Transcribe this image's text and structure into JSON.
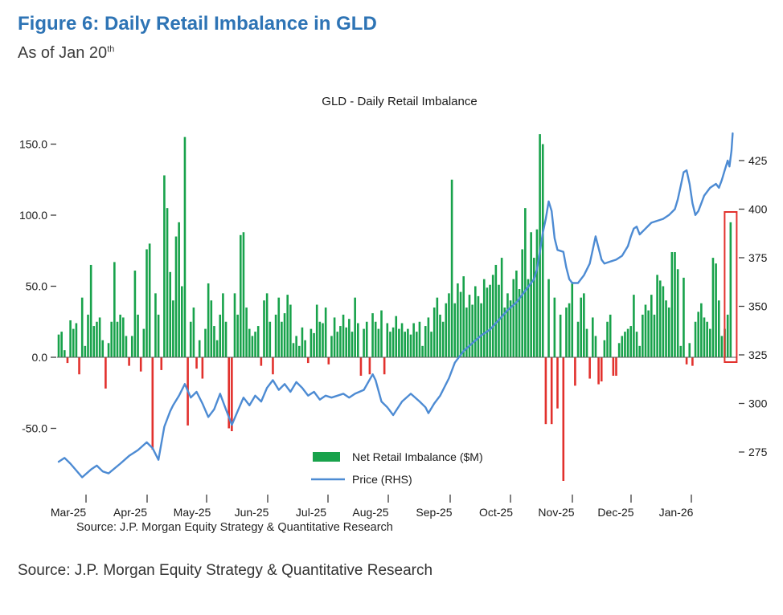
{
  "document": {
    "title": "Figure 6: Daily Retail Imbalance in GLD",
    "as_of_text": "As of Jan 20",
    "as_of_superscript": "th",
    "source": "Source: J.P. Morgan Equity Strategy & Quantitative Research"
  },
  "chart_data": {
    "type": "bar+line",
    "title": "GLD - Daily Retail Imbalance",
    "source": "Source: J.P. Morgan Equity Strategy & Quantitative Research",
    "legend_position": "bottom-center-inside",
    "grid": false,
    "x_axis": {
      "labels": [
        "Mar-25",
        "Apr-25",
        "May-25",
        "Jun-25",
        "Jul-25",
        "Aug-25",
        "Sep-25",
        "Oct-25",
        "Nov-25",
        "Dec-25",
        "Jan-26"
      ]
    },
    "y_axis_left": {
      "name": "Net Retail Imbalance ($M)",
      "tick_labels": [
        "150.0",
        "100.0",
        "50.0",
        "0.0",
        "-50.0"
      ],
      "tick_values": [
        150,
        100,
        50,
        0,
        -50
      ],
      "range": [
        -105,
        165
      ]
    },
    "y_axis_right": {
      "name": "Price (RHS)",
      "tick_labels": [
        "425",
        "400",
        "375",
        "350",
        "325",
        "300",
        "275"
      ],
      "tick_values": [
        425,
        400,
        375,
        350,
        325,
        300,
        275
      ],
      "range": [
        262,
        442
      ]
    },
    "legend": [
      {
        "label": "Net Retail Imbalance ($M)",
        "swatch": "bar",
        "color": "#18a24b"
      },
      {
        "label": "Price (RHS)",
        "swatch": "line",
        "color": "#4d8bd3"
      }
    ],
    "series": [
      {
        "name": "Net Retail Imbalance ($M)",
        "type": "bar",
        "axis": "left",
        "color_positive": "#18a24b",
        "color_negative": "#e2312d",
        "values": [
          16,
          18,
          5,
          -4,
          26,
          20,
          24,
          -12,
          42,
          8,
          30,
          65,
          22,
          25,
          28,
          12,
          -22,
          10,
          25,
          67,
          25,
          30,
          28,
          15,
          -6,
          15,
          61,
          30,
          -10,
          20,
          76,
          80,
          -65,
          45,
          30,
          -9,
          128,
          105,
          60,
          40,
          85,
          95,
          50,
          155,
          -48,
          25,
          35,
          -8,
          12,
          -15,
          20,
          52,
          40,
          22,
          12,
          30,
          45,
          25,
          -50,
          -52,
          45,
          30,
          86,
          88,
          35,
          20,
          15,
          18,
          22,
          -6,
          40,
          45,
          25,
          -12,
          30,
          42,
          25,
          31,
          44,
          37,
          10,
          15,
          8,
          21,
          12,
          -4,
          20,
          17,
          37,
          25,
          24,
          35,
          -5,
          15,
          28,
          18,
          22,
          30,
          21,
          27,
          18,
          42,
          24,
          -13,
          20,
          25,
          -12,
          31,
          25,
          20,
          33,
          -12,
          24,
          18,
          21,
          29,
          20,
          24,
          18,
          20,
          16,
          24,
          18,
          25,
          8,
          22,
          28,
          18,
          35,
          42,
          30,
          25,
          38,
          45,
          125,
          38,
          52,
          46,
          57,
          35,
          44,
          37,
          50,
          43,
          38,
          55,
          49,
          51,
          58,
          65,
          51,
          70,
          35,
          45,
          40,
          55,
          61,
          48,
          76,
          105,
          55,
          88,
          70,
          90,
          157,
          150,
          -47,
          55,
          -47,
          42,
          -36,
          30,
          -87,
          35,
          38,
          53,
          -20,
          25,
          42,
          45,
          20,
          -15,
          28,
          15,
          -19,
          -17,
          12,
          25,
          30,
          -13,
          -13,
          10,
          15,
          18,
          20,
          22,
          44,
          18,
          8,
          30,
          37,
          33,
          44,
          30,
          58,
          54,
          50,
          40,
          35,
          74,
          74,
          62,
          8,
          56,
          -5,
          10,
          -6,
          25,
          32,
          38,
          28,
          25,
          20,
          70,
          66,
          40,
          15,
          20,
          30,
          95
        ]
      },
      {
        "name": "Price (RHS)",
        "type": "line",
        "axis": "right",
        "color": "#4d8bd3",
        "points": [
          [
            0,
            270
          ],
          [
            2,
            272
          ],
          [
            4,
            269
          ],
          [
            8,
            262
          ],
          [
            11,
            266
          ],
          [
            13,
            268
          ],
          [
            15,
            265
          ],
          [
            17,
            264
          ],
          [
            21,
            269
          ],
          [
            24,
            273
          ],
          [
            27,
            276
          ],
          [
            30,
            280
          ],
          [
            32,
            277
          ],
          [
            34,
            271
          ],
          [
            36,
            288
          ],
          [
            38,
            296
          ],
          [
            39,
            299
          ],
          [
            41,
            304
          ],
          [
            43,
            310
          ],
          [
            45,
            303
          ],
          [
            47,
            306
          ],
          [
            49,
            300
          ],
          [
            51,
            293
          ],
          [
            53,
            297
          ],
          [
            55,
            305
          ],
          [
            57,
            297
          ],
          [
            59,
            289
          ],
          [
            61,
            296
          ],
          [
            63,
            303
          ],
          [
            65,
            299
          ],
          [
            67,
            304
          ],
          [
            69,
            301
          ],
          [
            71,
            308
          ],
          [
            73,
            312
          ],
          [
            75,
            307
          ],
          [
            77,
            310
          ],
          [
            79,
            306
          ],
          [
            81,
            311
          ],
          [
            83,
            308
          ],
          [
            85,
            304
          ],
          [
            87,
            306
          ],
          [
            89,
            302
          ],
          [
            91,
            304
          ],
          [
            93,
            303
          ],
          [
            95,
            304
          ],
          [
            97,
            305
          ],
          [
            99,
            303
          ],
          [
            101,
            305
          ],
          [
            104,
            307
          ],
          [
            107,
            315
          ],
          [
            108,
            312
          ],
          [
            110,
            301
          ],
          [
            112,
            298
          ],
          [
            114,
            294
          ],
          [
            117,
            301
          ],
          [
            120,
            305
          ],
          [
            123,
            301
          ],
          [
            125,
            298
          ],
          [
            126,
            295
          ],
          [
            128,
            300
          ],
          [
            130,
            304
          ],
          [
            133,
            313
          ],
          [
            135,
            321
          ],
          [
            138,
            327
          ],
          [
            141,
            331
          ],
          [
            144,
            335
          ],
          [
            147,
            338
          ],
          [
            150,
            343
          ],
          [
            153,
            348
          ],
          [
            156,
            352
          ],
          [
            159,
            358
          ],
          [
            162,
            364
          ],
          [
            163,
            369
          ],
          [
            164,
            378
          ],
          [
            165,
            388
          ],
          [
            166,
            395
          ],
          [
            167,
            404
          ],
          [
            168,
            399
          ],
          [
            169,
            385
          ],
          [
            170,
            379
          ],
          [
            172,
            378
          ],
          [
            173,
            370
          ],
          [
            174,
            364
          ],
          [
            175,
            362
          ],
          [
            177,
            362
          ],
          [
            179,
            366
          ],
          [
            181,
            372
          ],
          [
            182,
            379
          ],
          [
            183,
            386
          ],
          [
            184,
            380
          ],
          [
            185,
            374
          ],
          [
            186,
            372
          ],
          [
            188,
            373
          ],
          [
            190,
            374
          ],
          [
            192,
            376
          ],
          [
            194,
            381
          ],
          [
            195,
            386
          ],
          [
            196,
            390
          ],
          [
            197,
            391
          ],
          [
            198,
            387
          ],
          [
            200,
            390
          ],
          [
            202,
            393
          ],
          [
            204,
            394
          ],
          [
            206,
            395
          ],
          [
            208,
            397
          ],
          [
            210,
            400
          ],
          [
            211,
            405
          ],
          [
            212,
            412
          ],
          [
            213,
            419
          ],
          [
            214,
            420
          ],
          [
            215,
            413
          ],
          [
            216,
            403
          ],
          [
            217,
            397
          ],
          [
            218,
            399
          ],
          [
            219,
            403
          ],
          [
            220,
            407
          ],
          [
            222,
            411
          ],
          [
            224,
            413
          ],
          [
            225,
            411
          ],
          [
            226,
            415
          ],
          [
            227,
            420
          ],
          [
            228,
            425
          ],
          [
            228.6,
            422
          ],
          [
            229.3,
            430
          ],
          [
            229.7,
            439
          ]
        ]
      }
    ],
    "highlight": {
      "type": "box",
      "target": "last-bar",
      "color": "#e2312d"
    }
  }
}
